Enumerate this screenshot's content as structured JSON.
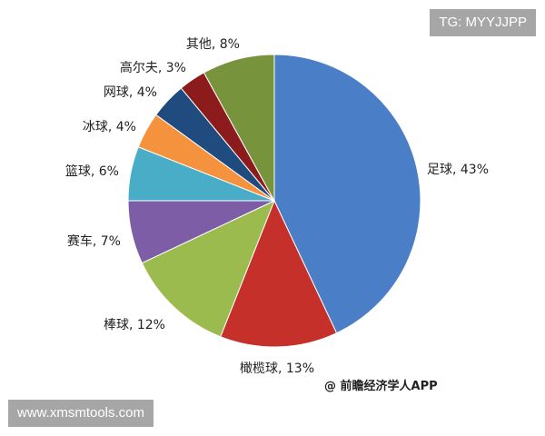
{
  "watermarks": {
    "top_right": "TG: MYYJJPP",
    "bottom_left": "www.xmsmtools.com",
    "credit": "@ 前瞻经济学人APP"
  },
  "chart_data": {
    "type": "pie",
    "start": "12 o'clock, clockwise",
    "categories": [
      "足球",
      "橄榄球",
      "棒球",
      "赛车",
      "篮球",
      "冰球",
      "网球",
      "高尔夫",
      "其他"
    ],
    "values": [
      43,
      13,
      12,
      7,
      6,
      4,
      4,
      3,
      8
    ],
    "labels": [
      "足球, 43%",
      "橄榄球, 13%",
      "棒球, 12%",
      "赛车, 7%",
      "篮球, 6%",
      "冰球, 4%",
      "网球, 4%",
      "高尔夫, 3%",
      "其他, 8%"
    ],
    "colors": [
      "#4a7ec6",
      "#c5302b",
      "#9bbb4f",
      "#7d5ea6",
      "#4aadc8",
      "#f5923e",
      "#1f4b7e",
      "#8c1c1c",
      "#77933c"
    ]
  }
}
